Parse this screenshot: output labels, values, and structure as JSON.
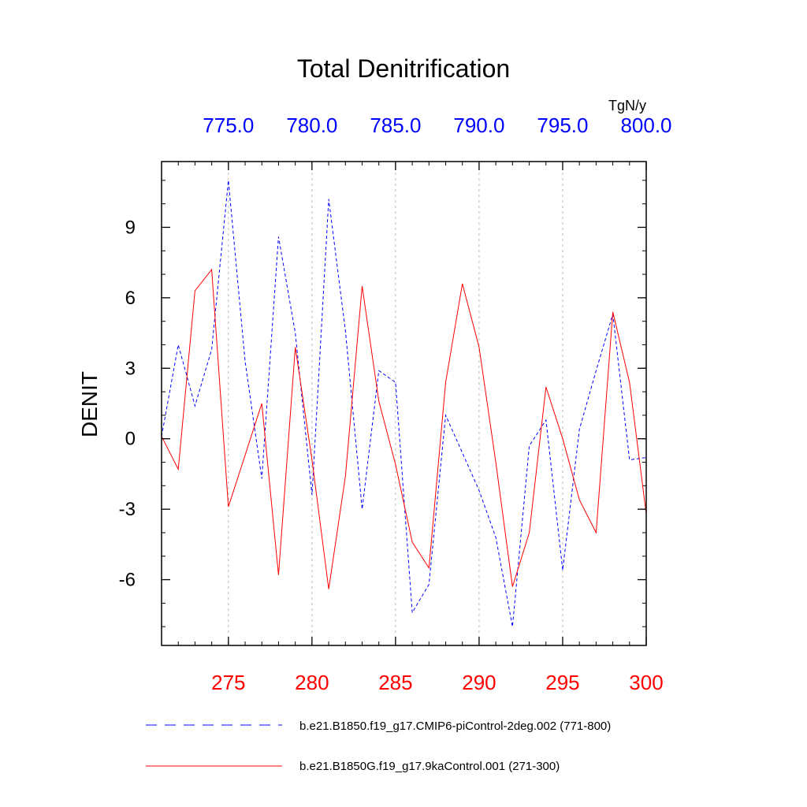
{
  "chart_data": {
    "type": "line",
    "title": "Total Denitrification",
    "ylabel": "DENIT",
    "units": "TgN/y",
    "xlim_bottom": [
      271,
      300
    ],
    "xlim_top": [
      771,
      800
    ],
    "ylim": [
      -8.8,
      11.8
    ],
    "xticks_bottom": [
      275,
      280,
      285,
      290,
      295,
      300
    ],
    "xticks_bottom_labels": [
      "275",
      "280",
      "285",
      "290",
      "295",
      "300"
    ],
    "xticks_top": [
      775,
      780,
      785,
      790,
      795,
      800
    ],
    "xticks_top_labels": [
      "775.0",
      "780.0",
      "785.0",
      "790.0",
      "795.0",
      "800.0"
    ],
    "yticks": [
      9,
      6,
      3,
      0,
      -3,
      -6
    ],
    "yticks_labels": [
      "9",
      "6",
      "3",
      "0",
      "-3",
      "-6"
    ],
    "series": [
      {
        "name": "b.e21.B1850.f19_g17.CMIP6-piControl-2deg.002 (771-800)",
        "color": "#0000ff",
        "style": "dashed",
        "x": [
          771,
          772,
          773,
          774,
          775,
          776,
          777,
          778,
          779,
          780,
          781,
          782,
          783,
          784,
          785,
          786,
          787,
          788,
          789,
          790,
          791,
          792,
          793,
          794,
          795,
          796,
          797,
          798,
          799,
          800
        ],
        "values": [
          0.1,
          4.0,
          1.4,
          3.8,
          11.0,
          3.3,
          -1.7,
          8.6,
          4.5,
          -2.4,
          10.2,
          4.6,
          -3.0,
          2.9,
          2.4,
          -7.4,
          -6.2,
          1.0,
          -0.6,
          -2.2,
          -4.2,
          -8.0,
          -0.3,
          0.8,
          -5.6,
          0.4,
          2.9,
          5.3,
          -0.9,
          -0.8
        ]
      },
      {
        "name": "b.e21.B1850G.f19_g17.9kaControl.001 (271-300)",
        "color": "#ff0000",
        "style": "solid",
        "x": [
          271,
          272,
          273,
          274,
          275,
          276,
          277,
          278,
          279,
          280,
          281,
          282,
          283,
          284,
          285,
          286,
          287,
          288,
          289,
          290,
          291,
          292,
          293,
          294,
          295,
          296,
          297,
          298,
          299,
          300
        ],
        "values": [
          0.1,
          -1.3,
          6.3,
          7.2,
          -2.9,
          -0.7,
          1.5,
          -5.8,
          3.9,
          -0.9,
          -6.4,
          -1.6,
          6.5,
          1.6,
          -1.1,
          -4.4,
          -5.5,
          2.4,
          6.6,
          3.9,
          -1.0,
          -6.3,
          -4.0,
          2.2,
          0.0,
          -2.6,
          -4.0,
          5.4,
          2.4,
          -3.2
        ]
      }
    ]
  }
}
